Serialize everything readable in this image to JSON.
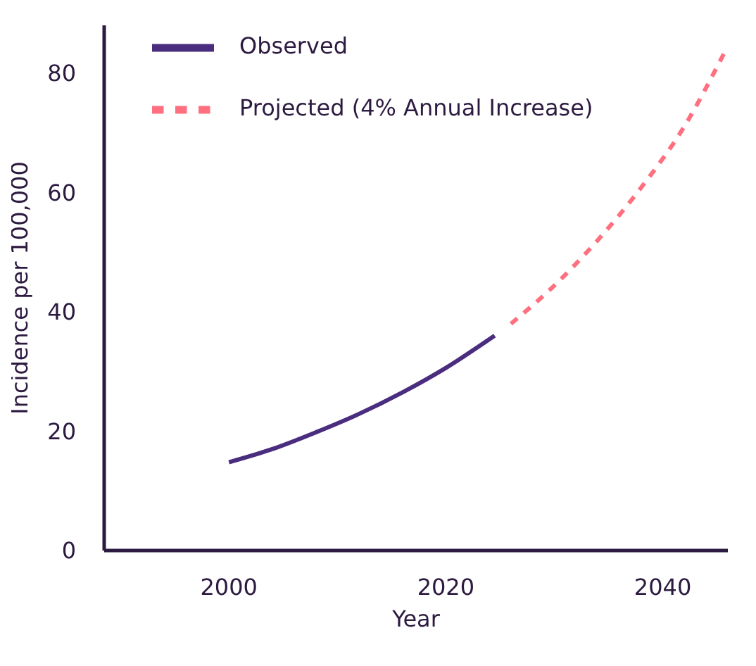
{
  "chart_data": {
    "type": "line",
    "xlabel": "Year",
    "ylabel": "Incidence per 100,000",
    "xlim": [
      1988.5,
      2046
    ],
    "xticks": [
      2000,
      2020,
      2040
    ],
    "ylim": [
      0,
      88
    ],
    "yticks": [
      0,
      20,
      40,
      60,
      80
    ],
    "grid": false,
    "legend": "top left",
    "marker": "none",
    "series": [
      {
        "name": "Observed",
        "color": "#4b2d7f",
        "line_style": "solid",
        "x": [
          2000,
          2004,
          2008,
          2012,
          2016,
          2020,
          2024.5
        ],
        "values": [
          14.8,
          17,
          19.8,
          22.9,
          26.5,
          30.6,
          36
        ]
      },
      {
        "name": "Projected (4% Annual Increase)",
        "color": "#ff6f7f",
        "line_style": "dashed",
        "x": [
          2026,
          2030,
          2034,
          2038,
          2042,
          2045.7
        ],
        "values": [
          38,
          44.4,
          52,
          60.8,
          71.1,
          83.5
        ]
      }
    ]
  }
}
